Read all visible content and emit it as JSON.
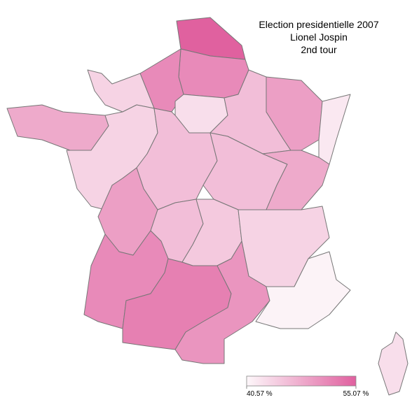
{
  "map": {
    "title": [
      "Election presidentielle 2007",
      "Lionel Jospin",
      "2nd tour"
    ],
    "legend": {
      "min": {
        "value": 40.57,
        "label": "40.57 %"
      },
      "max": {
        "value": 55.07,
        "label": "55.07 %"
      },
      "min_color": "#fdf7fa",
      "max_color": "#e0609f"
    },
    "region_values": [
      55,
      51,
      51,
      44,
      43,
      46,
      49,
      42,
      48,
      44,
      46,
      46,
      48,
      49,
      46,
      45,
      44,
      51,
      52,
      50,
      41,
      43
    ]
  }
}
